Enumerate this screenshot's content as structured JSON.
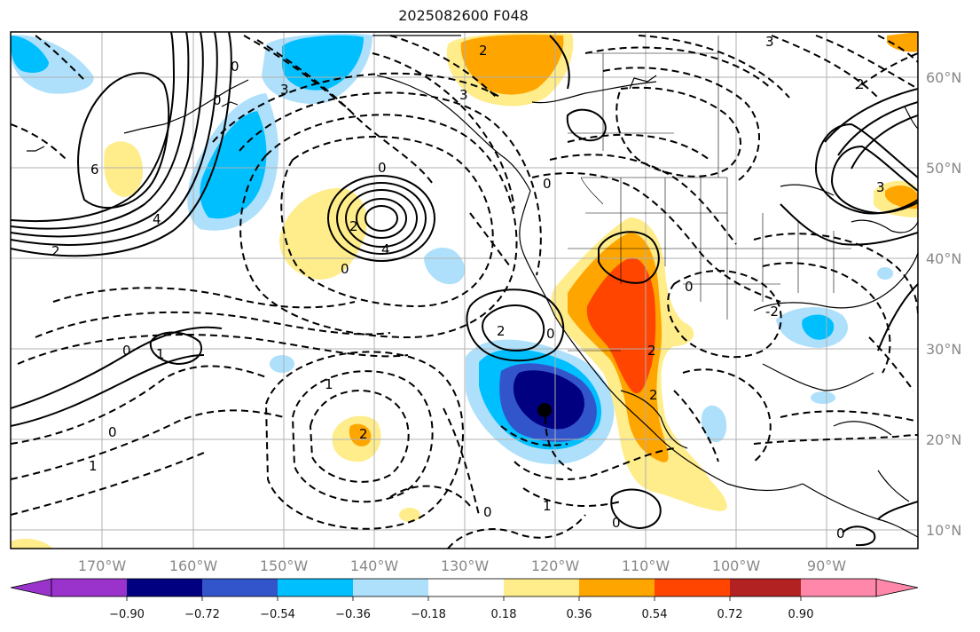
{
  "title": "2025082600 F048",
  "map": {
    "lon_labels": [
      "170°W",
      "160°W",
      "150°W",
      "140°W",
      "130°W",
      "120°W",
      "110°W",
      "100°W",
      "90°W"
    ],
    "lat_labels": [
      "60°N",
      "50°N",
      "40°N",
      "30°N",
      "20°N",
      "10°N"
    ],
    "contour_labels": [
      "2",
      "3",
      "0",
      "6",
      "4",
      "2",
      "0",
      "4",
      "0",
      "0",
      "1",
      "0",
      "1",
      "0",
      "2",
      "2",
      "3",
      "2",
      "0",
      "0",
      "2",
      "3",
      "-2",
      "2",
      "1",
      "0",
      "1",
      "2",
      "3"
    ],
    "marker": "black-dot"
  },
  "colorbar": {
    "ticks": [
      "−0.90",
      "−0.72",
      "−0.54",
      "−0.36",
      "−0.18",
      "0.18",
      "0.36",
      "0.54",
      "0.72",
      "0.90"
    ],
    "colors": [
      "#9933cc",
      "#000080",
      "#3355cc",
      "#00bfff",
      "#aee0fb",
      "#ffffff",
      "#ffec8b",
      "#ffa500",
      "#ff4500",
      "#b22222",
      "#ff88aa"
    ]
  }
}
